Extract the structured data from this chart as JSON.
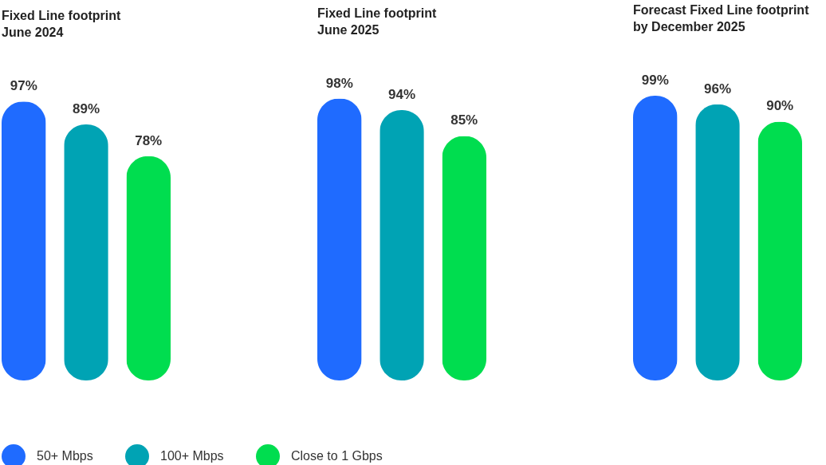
{
  "chart_data": [
    {
      "type": "bar",
      "title": "Fixed Line footprint\nJune 2024",
      "categories": [
        null
      ],
      "data_labels": true,
      "legend": "bottom",
      "series": [
        {
          "name": "50+ Mbps",
          "color": "#1f6bff",
          "values": [
            97
          ],
          "value_labels": [
            "97%"
          ]
        },
        {
          "name": "100+ Mbps",
          "color": "#00a3b4",
          "values": [
            89
          ],
          "value_labels": [
            "89%"
          ]
        },
        {
          "name": "Close to 1 Gbps",
          "color": "#00dd4f",
          "values": [
            78
          ],
          "value_labels": [
            "78%"
          ]
        }
      ]
    },
    {
      "type": "bar",
      "title": "Fixed Line footprint\nJune 2025",
      "categories": [
        null
      ],
      "data_labels": true,
      "legend": "bottom",
      "series": [
        {
          "name": "50+ Mbps",
          "color": "#1f6bff",
          "values": [
            98
          ],
          "value_labels": [
            "98%"
          ]
        },
        {
          "name": "100+ Mbps",
          "color": "#00a3b4",
          "values": [
            94
          ],
          "value_labels": [
            "94%"
          ]
        },
        {
          "name": "Close to 1 Gbps",
          "color": "#00dd4f",
          "values": [
            85
          ],
          "value_labels": [
            "85%"
          ]
        }
      ]
    },
    {
      "type": "bar",
      "title": "Forecast Fixed Line footprint\nby December 2025",
      "categories": [
        null
      ],
      "data_labels": true,
      "legend": "bottom",
      "series": [
        {
          "name": "50+ Mbps",
          "color": "#1f6bff",
          "values": [
            99
          ],
          "value_labels": [
            "99%"
          ]
        },
        {
          "name": "100+ Mbps",
          "color": "#00a3b4",
          "values": [
            96
          ],
          "value_labels": [
            "96%"
          ]
        },
        {
          "name": "Close to 1 Gbps",
          "color": "#00dd4f",
          "values": [
            90
          ],
          "value_labels": [
            "90%"
          ]
        }
      ]
    }
  ]
}
